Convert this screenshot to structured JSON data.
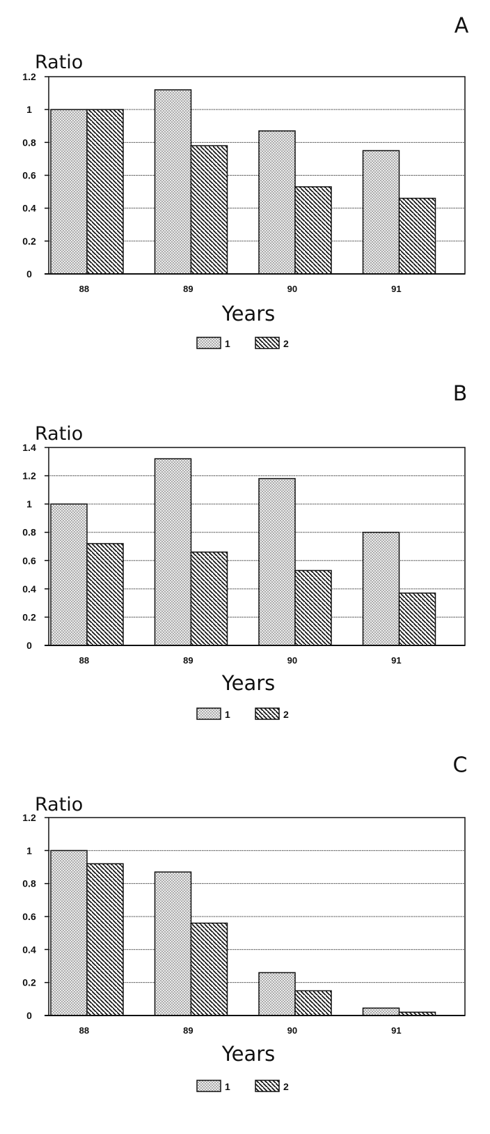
{
  "chart_data": [
    {
      "type": "bar",
      "panel": "A",
      "ylabel": "Ratio",
      "xlabel": "Years",
      "categories": [
        "88",
        "89",
        "90",
        "91"
      ],
      "ylim": [
        0,
        1.2
      ],
      "yticks": [
        "0",
        "0.2",
        "0.4",
        "0.6",
        "0.8",
        "1",
        "1.2"
      ],
      "grid": true,
      "legend": "bottom-center",
      "series": [
        {
          "name": "1",
          "values": [
            1.0,
            1.12,
            0.87,
            0.75
          ]
        },
        {
          "name": "2",
          "values": [
            1.0,
            0.78,
            0.53,
            0.46
          ]
        }
      ]
    },
    {
      "type": "bar",
      "panel": "B",
      "ylabel": "Ratio",
      "xlabel": "Years",
      "categories": [
        "88",
        "89",
        "90",
        "91"
      ],
      "ylim": [
        0,
        1.4
      ],
      "yticks": [
        "0",
        "0.2",
        "0.4",
        "0.6",
        "0.8",
        "1",
        "1.2",
        "1.4"
      ],
      "grid": true,
      "legend": "bottom-center",
      "series": [
        {
          "name": "1",
          "values": [
            1.0,
            1.32,
            1.18,
            0.8
          ]
        },
        {
          "name": "2",
          "values": [
            0.72,
            0.66,
            0.53,
            0.37
          ]
        }
      ]
    },
    {
      "type": "bar",
      "panel": "C",
      "ylabel": "Ratio",
      "xlabel": "Years",
      "categories": [
        "88",
        "89",
        "90",
        "91"
      ],
      "ylim": [
        0,
        1.2
      ],
      "yticks": [
        "0",
        "0.2",
        "0.4",
        "0.6",
        "0.8",
        "1",
        "1.2"
      ],
      "grid": true,
      "legend": "bottom-center",
      "series": [
        {
          "name": "1",
          "values": [
            1.0,
            0.87,
            0.26,
            0.045
          ]
        },
        {
          "name": "2",
          "values": [
            0.92,
            0.56,
            0.15,
            0.02
          ]
        }
      ]
    }
  ]
}
